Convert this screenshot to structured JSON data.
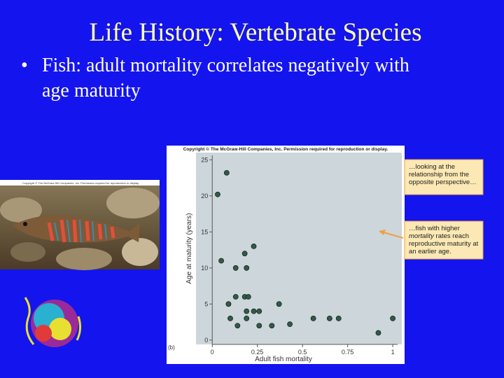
{
  "slide": {
    "title": "Life History: Vertebrate Species",
    "bullet_lines": [
      "Fish: adult mortality correlates negatively with",
      "age maturity"
    ],
    "photo_copyright": "Copyright © The McGraw-Hill Companies, Inc. Permission required for reproduction or display."
  },
  "chart_data": {
    "type": "scatter",
    "copyright": "Copyright © The McGraw-Hill Companies, Inc. Permission required for reproduction or display.",
    "panel_label": "(b)",
    "x_label": "Adult fish mortality",
    "y_label": "Age at maturity (years)",
    "xlim": [
      -0.09,
      1.05
    ],
    "ylim": [
      -0.6,
      26
    ],
    "xticks": [
      0,
      0.25,
      0.5,
      0.75,
      1
    ],
    "yticks": [
      0,
      5,
      10,
      15,
      20,
      25
    ],
    "color": "#2f5a48",
    "x": [
      0.03,
      0.08,
      0.05,
      0.13,
      0.19,
      0.18,
      0.23,
      0.13,
      0.18,
      0.2,
      0.09,
      0.1,
      0.14,
      0.19,
      0.19,
      0.23,
      0.26,
      0.26,
      0.33,
      0.37,
      0.43,
      0.56,
      0.65,
      0.7,
      0.92,
      1
    ],
    "values": [
      20.2,
      23.2,
      11,
      10,
      10,
      12,
      13,
      6,
      6,
      6,
      5,
      3,
      2,
      4,
      3,
      4,
      4,
      2,
      2,
      5,
      2.2,
      3,
      3,
      3,
      1,
      3
    ],
    "annotations": [
      {
        "lines": [
          "…looking at the",
          "relationship from the",
          "opposite perspective…"
        ]
      },
      {
        "lines": [
          "…fish with higher",
          [
            {
              "text": "mortality",
              "italic": true
            },
            {
              "text": " rates reach"
            }
          ],
          "reproductive maturity at",
          "an earlier age."
        ]
      }
    ]
  }
}
